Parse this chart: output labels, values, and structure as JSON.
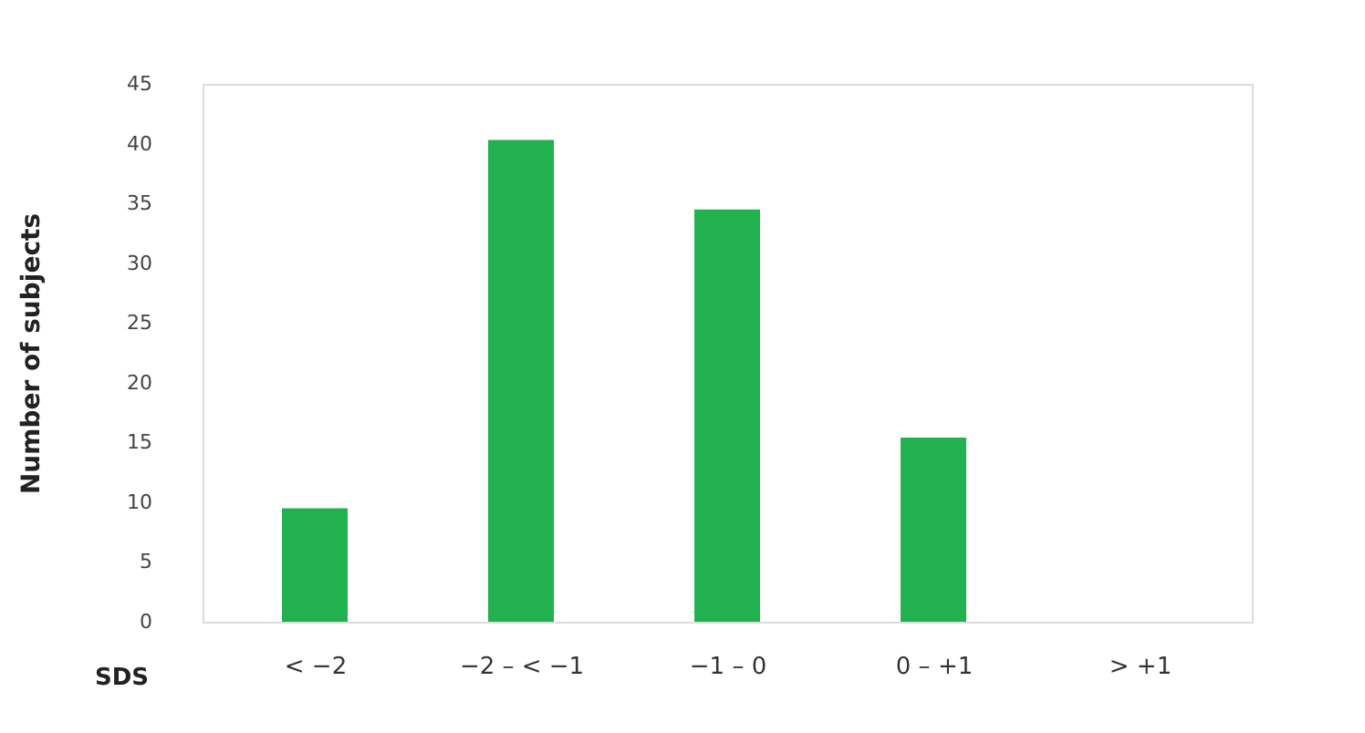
{
  "chart_data": {
    "type": "bar",
    "xlabel": "SDS",
    "ylabel": "Number of subjects",
    "categories": [
      "< −2",
      "−2 – < −1",
      "−1 – 0",
      "0 – +1",
      "> +1"
    ],
    "values": [
      9.5,
      40.3,
      34.5,
      15.4,
      0
    ],
    "color": "#21b24f",
    "ylim": [
      0,
      45
    ],
    "yticks": [
      0,
      5,
      10,
      15,
      20,
      25,
      30,
      35,
      40,
      45
    ],
    "grid": false
  }
}
